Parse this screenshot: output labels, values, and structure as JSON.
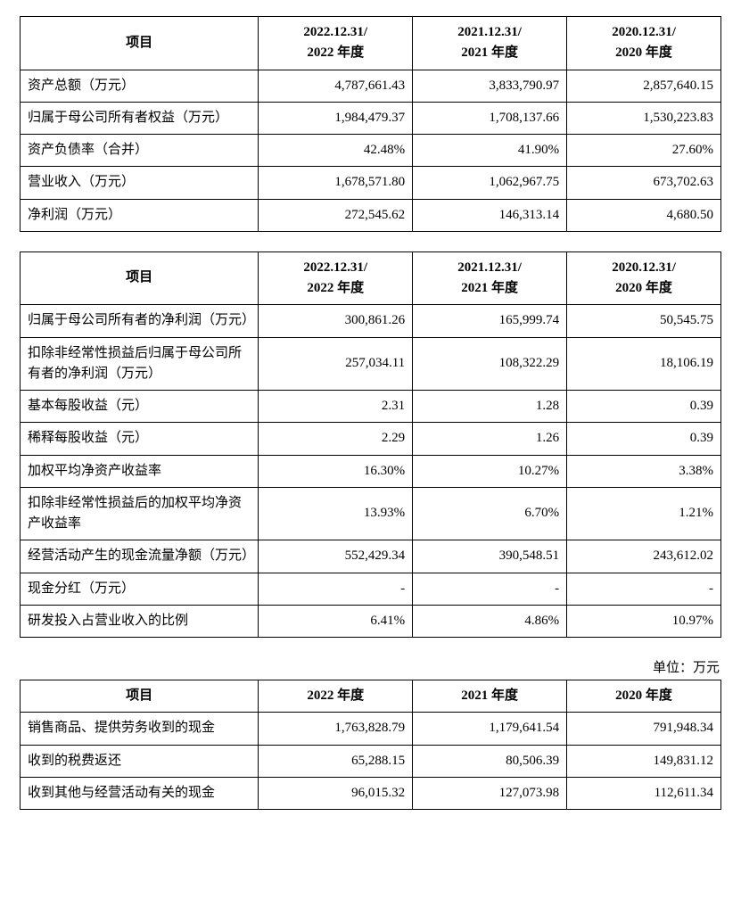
{
  "tables": {
    "t1": {
      "columns": [
        {
          "label": "项目",
          "align": "center"
        },
        {
          "label": "2022.12.31/\n2022 年度",
          "align": "center"
        },
        {
          "label": "2021.12.31/\n2021 年度",
          "align": "center"
        },
        {
          "label": "2020.12.31/\n2020 年度",
          "align": "center"
        }
      ],
      "rows": [
        {
          "label": "资产总额（万元）",
          "y2022": "4,787,661.43",
          "y2021": "3,833,790.97",
          "y2020": "2,857,640.15"
        },
        {
          "label": "归属于母公司所有者权益（万元）",
          "y2022": "1,984,479.37",
          "y2021": "1,708,137.66",
          "y2020": "1,530,223.83"
        },
        {
          "label": "资产负债率（合并）",
          "y2022": "42.48%",
          "y2021": "41.90%",
          "y2020": "27.60%"
        },
        {
          "label": "营业收入（万元）",
          "y2022": "1,678,571.80",
          "y2021": "1,062,967.75",
          "y2020": "673,702.63"
        },
        {
          "label": "净利润（万元）",
          "y2022": "272,545.62",
          "y2021": "146,313.14",
          "y2020": "4,680.50"
        }
      ]
    },
    "t2": {
      "columns": [
        {
          "label": "项目",
          "align": "center"
        },
        {
          "label": "2022.12.31/\n2022 年度",
          "align": "center"
        },
        {
          "label": "2021.12.31/\n2021 年度",
          "align": "center"
        },
        {
          "label": "2020.12.31/\n2020 年度",
          "align": "center"
        }
      ],
      "rows": [
        {
          "label": "归属于母公司所有者的净利润（万元）",
          "y2022": "300,861.26",
          "y2021": "165,999.74",
          "y2020": "50,545.75"
        },
        {
          "label": "扣除非经常性损益后归属于母公司所有者的净利润（万元）",
          "y2022": "257,034.11",
          "y2021": "108,322.29",
          "y2020": "18,106.19"
        },
        {
          "label": "基本每股收益（元）",
          "y2022": "2.31",
          "y2021": "1.28",
          "y2020": "0.39"
        },
        {
          "label": "稀释每股收益（元）",
          "y2022": "2.29",
          "y2021": "1.26",
          "y2020": "0.39"
        },
        {
          "label": "加权平均净资产收益率",
          "y2022": "16.30%",
          "y2021": "10.27%",
          "y2020": "3.38%"
        },
        {
          "label": "扣除非经常性损益后的加权平均净资产收益率",
          "y2022": "13.93%",
          "y2021": "6.70%",
          "y2020": "1.21%"
        },
        {
          "label": "经营活动产生的现金流量净额（万元）",
          "y2022": "552,429.34",
          "y2021": "390,548.51",
          "y2020": "243,612.02"
        },
        {
          "label": "现金分红（万元）",
          "y2022": "-",
          "y2021": "-",
          "y2020": "-"
        },
        {
          "label": "研发投入占营业收入的比例",
          "y2022": "6.41%",
          "y2021": "4.86%",
          "y2020": "10.97%"
        }
      ]
    },
    "t3": {
      "unit_text": "单位：万元",
      "columns": [
        {
          "label": "项目",
          "align": "center"
        },
        {
          "label": "2022 年度",
          "align": "center"
        },
        {
          "label": "2021 年度",
          "align": "center"
        },
        {
          "label": "2020 年度",
          "align": "center"
        }
      ],
      "rows": [
        {
          "label": "销售商品、提供劳务收到的现金",
          "y2022": "1,763,828.79",
          "y2021": "1,179,641.54",
          "y2020": "791,948.34"
        },
        {
          "label": "收到的税费返还",
          "y2022": "65,288.15",
          "y2021": "80,506.39",
          "y2020": "149,831.12"
        },
        {
          "label": "收到其他与经营活动有关的现金",
          "y2022": "96,015.32",
          "y2021": "127,073.98",
          "y2020": "112,611.34"
        }
      ]
    }
  },
  "style": {
    "border_color": "#000000",
    "text_color": "#000000",
    "background_color": "#ffffff",
    "font_family": "SimSun",
    "header_fontsize_pt": 11,
    "body_fontsize_pt": 11,
    "col_widths_pct": [
      34,
      22,
      22,
      22
    ]
  }
}
